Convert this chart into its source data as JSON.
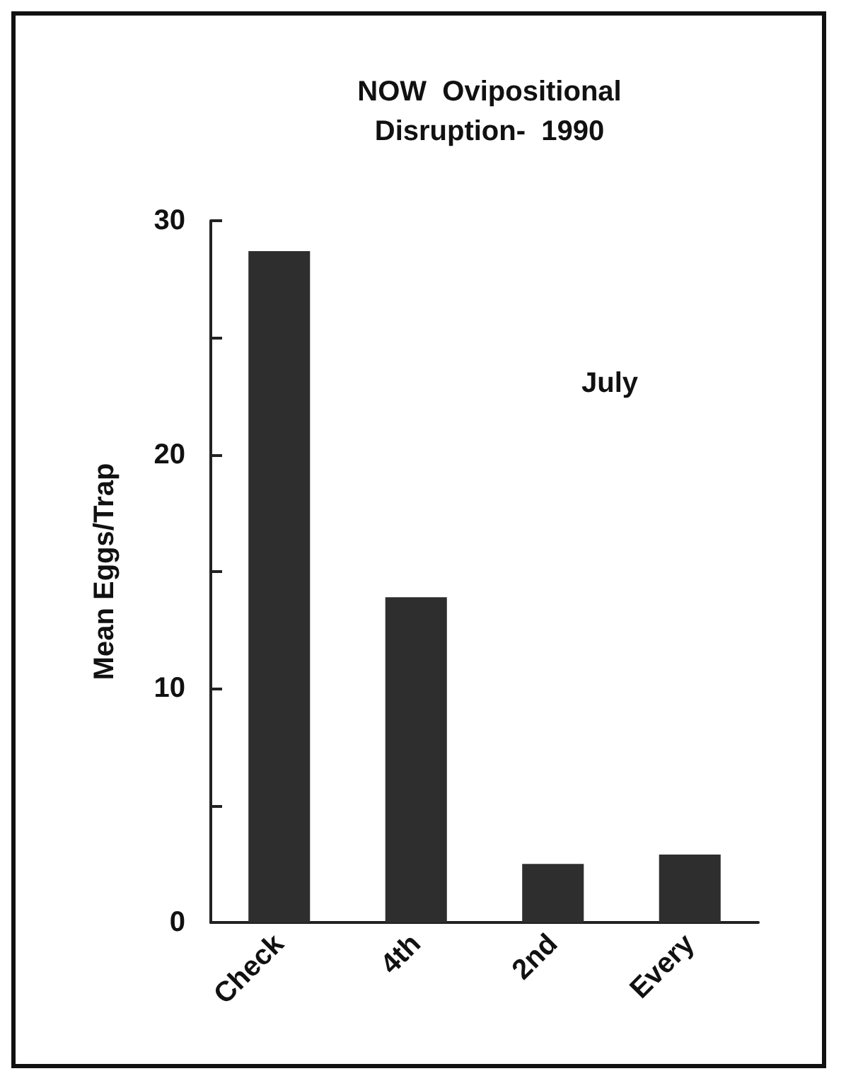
{
  "chart_data": {
    "type": "bar",
    "title": "NOW  Ovipositional\nDisruption-  1990",
    "ylabel": "Mean Eggs/Trap",
    "categories": [
      "Check",
      "4th",
      "2nd",
      "Every"
    ],
    "values": [
      28.7,
      13.9,
      2.5,
      2.9
    ],
    "color": "#2e2e2e",
    "ylim": [
      0,
      30
    ],
    "yticks": [
      0,
      {
        "value": 5,
        "label": null
      },
      10,
      {
        "value": 15,
        "label": null
      },
      20,
      {
        "value": 25,
        "label": null
      },
      30
    ],
    "annotations": [
      "July"
    ],
    "grid": false
  }
}
